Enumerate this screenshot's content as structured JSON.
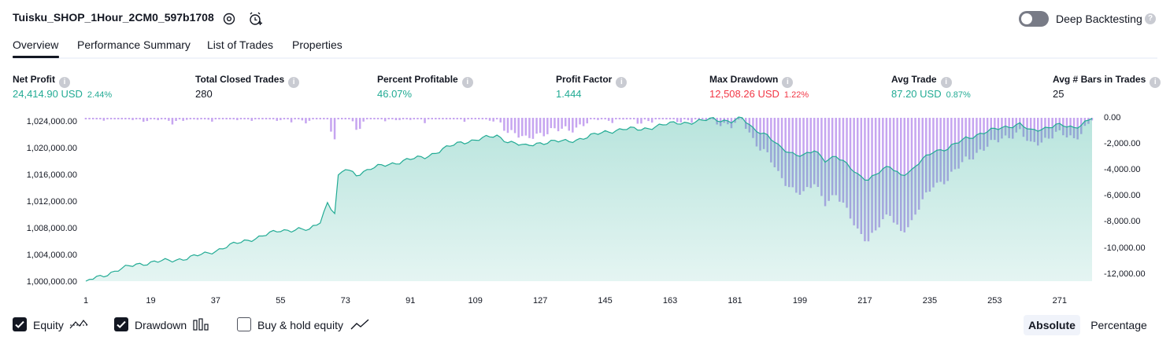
{
  "header": {
    "strategy_name": "Tuisku_SHOP_1Hour_2CM0_597b1708",
    "settings_icon": "settings-icon",
    "alert_icon": "alarm-clock-plus-icon",
    "deep_backtesting_label": "Deep Backtesting",
    "deep_backtesting_enabled": false,
    "help_icon": "question-icon"
  },
  "tabs": [
    {
      "label": "Overview",
      "active": true
    },
    {
      "label": "Performance Summary",
      "active": false
    },
    {
      "label": "List of Trades",
      "active": false
    },
    {
      "label": "Properties",
      "active": false
    }
  ],
  "metrics": [
    {
      "label": "Net Profit",
      "value": "24,414.90 USD",
      "pct": "2.44%",
      "tone": "green"
    },
    {
      "label": "Total Closed Trades",
      "value": "280",
      "pct": "",
      "tone": "dark"
    },
    {
      "label": "Percent Profitable",
      "value": "46.07%",
      "pct": "",
      "tone": "green"
    },
    {
      "label": "Profit Factor",
      "value": "1.444",
      "pct": "",
      "tone": "green"
    },
    {
      "label": "Max Drawdown",
      "value": "12,508.26 USD",
      "pct": "1.22%",
      "tone": "red"
    },
    {
      "label": "Avg Trade",
      "value": "87.20 USD",
      "pct": "0.87%",
      "tone": "green"
    },
    {
      "label": "Avg # Bars in Trades",
      "value": "25",
      "pct": "",
      "tone": "dark"
    }
  ],
  "chart_data": {
    "type": "area",
    "equity_color": "#22ab94",
    "drawdown_color": "#c6a5f0",
    "left_axis": {
      "ticks": [
        "1,024,000.00",
        "1,020,000.00",
        "1,016,000.00",
        "1,012,000.00",
        "1,008,000.00",
        "1,004,000.00",
        "1,000,000.00"
      ],
      "range": [
        1000000,
        1024500
      ]
    },
    "right_axis": {
      "ticks": [
        "0.00",
        "-2,000.00",
        "-4,000.00",
        "-6,000.00",
        "-8,000.00",
        "-10,000.00",
        "-12,000.00"
      ],
      "range": [
        -12508.26,
        0
      ]
    },
    "x_ticks": [
      "1",
      "19",
      "37",
      "55",
      "73",
      "91",
      "109",
      "127",
      "145",
      "163",
      "181",
      "199",
      "217",
      "235",
      "253",
      "271"
    ],
    "equity_keypoints": [
      [
        1,
        1000000
      ],
      [
        5,
        1000700
      ],
      [
        10,
        1001700
      ],
      [
        15,
        1002500
      ],
      [
        20,
        1002900
      ],
      [
        25,
        1003100
      ],
      [
        30,
        1003600
      ],
      [
        35,
        1004200
      ],
      [
        40,
        1005200
      ],
      [
        45,
        1006000
      ],
      [
        50,
        1006800
      ],
      [
        55,
        1007600
      ],
      [
        60,
        1007800
      ],
      [
        63,
        1007600
      ],
      [
        66,
        1009000
      ],
      [
        68,
        1011800
      ],
      [
        70,
        1010200
      ],
      [
        71,
        1015600
      ],
      [
        73,
        1016800
      ],
      [
        76,
        1016000
      ],
      [
        80,
        1016900
      ],
      [
        85,
        1017500
      ],
      [
        90,
        1018200
      ],
      [
        95,
        1018600
      ],
      [
        100,
        1019800
      ],
      [
        105,
        1020800
      ],
      [
        110,
        1021300
      ],
      [
        115,
        1021800
      ],
      [
        118,
        1021000
      ],
      [
        121,
        1020500
      ],
      [
        123,
        1020200
      ],
      [
        126,
        1020700
      ],
      [
        130,
        1020900
      ],
      [
        135,
        1021000
      ],
      [
        140,
        1021600
      ],
      [
        145,
        1022400
      ],
      [
        150,
        1022800
      ],
      [
        155,
        1022800
      ],
      [
        160,
        1023300
      ],
      [
        165,
        1023800
      ],
      [
        170,
        1023800
      ],
      [
        175,
        1024400
      ],
      [
        180,
        1023900
      ],
      [
        183,
        1024400
      ],
      [
        186,
        1023000
      ],
      [
        190,
        1021800
      ],
      [
        193,
        1020200
      ],
      [
        196,
        1019400
      ],
      [
        200,
        1018800
      ],
      [
        203,
        1019500
      ],
      [
        206,
        1018200
      ],
      [
        209,
        1018800
      ],
      [
        212,
        1017400
      ],
      [
        215,
        1016000
      ],
      [
        218,
        1015300
      ],
      [
        221,
        1016300
      ],
      [
        224,
        1017200
      ],
      [
        227,
        1016000
      ],
      [
        230,
        1016500
      ],
      [
        233,
        1018200
      ],
      [
        236,
        1019600
      ],
      [
        240,
        1019800
      ],
      [
        245,
        1021500
      ],
      [
        250,
        1022200
      ],
      [
        255,
        1023100
      ],
      [
        260,
        1023500
      ],
      [
        263,
        1022500
      ],
      [
        266,
        1022900
      ],
      [
        270,
        1023400
      ],
      [
        275,
        1023000
      ],
      [
        278,
        1023900
      ],
      [
        280,
        1024414.9
      ]
    ],
    "legend": [
      {
        "label": "Equity",
        "checked": true,
        "icon": "equity-line-icon"
      },
      {
        "label": "Drawdown",
        "checked": true,
        "icon": "drawdown-bars-icon"
      },
      {
        "label": "Buy & hold equity",
        "checked": false,
        "icon": "buy-hold-line-icon"
      }
    ]
  },
  "view_toggle": {
    "absolute_label": "Absolute",
    "percentage_label": "Percentage",
    "selected": "Absolute"
  }
}
